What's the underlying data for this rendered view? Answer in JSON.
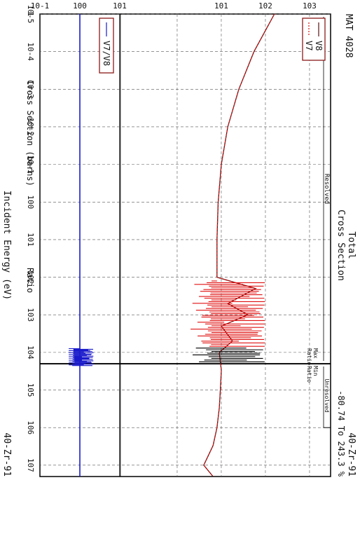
{
  "header": {
    "mat": "MAT 4028",
    "title_line1": "Total",
    "title_line2": "Cross Section",
    "material": "40-Zr-91",
    "energy_range": "-80.74 To 243.3 %",
    "material_footer": "40-Zr-91"
  },
  "regions": {
    "resolved": "Resolved",
    "unresolved": "Unresolved",
    "max_ratio": [
      "Max",
      "Ratio"
    ],
    "min_ratio": [
      "Min",
      "Ratio"
    ]
  },
  "colors": {
    "v8": "#5a1010",
    "v7": "#e01010",
    "ratio": "#1a1acc",
    "resonance_dark": "#000000",
    "frame": "#000000",
    "legend_border": "#8b1a1a"
  },
  "chart_data": [
    {
      "type": "line",
      "title": "Total Cross Section",
      "xlabel": "Incident Energy (eV)",
      "ylabel": "Cross Section (barns)",
      "xscale": "log",
      "yscale": "log",
      "xlim": [
        1e-05,
        20000000
      ],
      "ylim": [
        0.05,
        3000
      ],
      "x_ticks": [
        "1",
        "10-5",
        "10-4",
        "10-3",
        "10-2",
        "10-1",
        "100",
        "101",
        "102",
        "103",
        "104",
        "105",
        "106",
        "107"
      ],
      "y_ticks": [
        "101",
        "102",
        "103"
      ],
      "grid": true,
      "legend_position": "top-left",
      "series": [
        {
          "name": "V8",
          "x": [
            1e-05,
            0.0001,
            0.001,
            0.01,
            0.1,
            1,
            10,
            100,
            200,
            500,
            1000,
            2000,
            5000,
            10000,
            30000,
            100000,
            300000,
            1000000,
            3000000,
            10000000,
            20000000
          ],
          "y": [
            160,
            55,
            25,
            14,
            10,
            8.5,
            8,
            8,
            60,
            14,
            40,
            10,
            18,
            9,
            10,
            9.5,
            9,
            8,
            6.5,
            4,
            6.5
          ]
        },
        {
          "name": "V7",
          "x": [
            1e-05,
            0.0001,
            0.001,
            0.01,
            0.1,
            1,
            10,
            100,
            200,
            500,
            1000,
            2000,
            5000,
            10000,
            30000,
            100000,
            300000,
            1000000,
            3000000,
            10000000,
            20000000
          ],
          "y": [
            160,
            55,
            25,
            14,
            10,
            8.5,
            8,
            8,
            60,
            14,
            40,
            10,
            18,
            9,
            10,
            9.5,
            9,
            8,
            6.5,
            4,
            6.5
          ]
        }
      ]
    },
    {
      "type": "line",
      "ylabel": "Ratio",
      "xscale": "log",
      "yscale": "log",
      "xlim": [
        1e-05,
        20000000
      ],
      "ylim": [
        0.1,
        10
      ],
      "y_ticks": [
        "10-1",
        "100",
        "101"
      ],
      "legend_position": "top-left",
      "series": [
        {
          "name": "V7/V8",
          "x": [
            1e-05,
            1,
            10000,
            20000,
            30000,
            100000,
            20000000
          ],
          "y": [
            1.0,
            1.0,
            1.0,
            1.0,
            1.0,
            1.0,
            1.0
          ]
        }
      ]
    }
  ]
}
